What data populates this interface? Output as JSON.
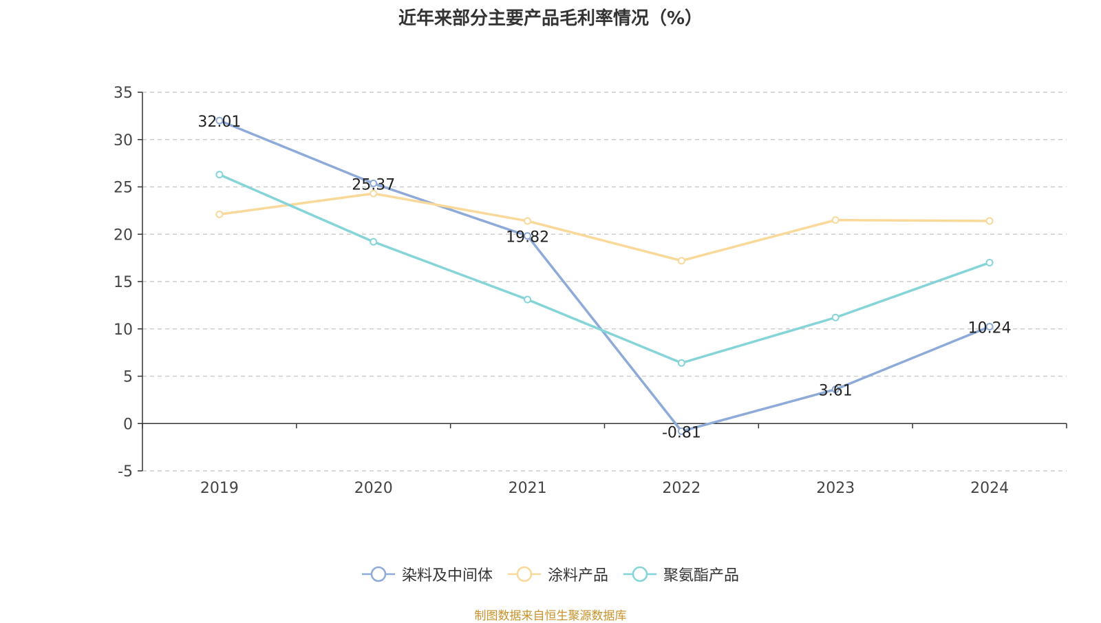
{
  "title": "近年来部分主要产品毛利率情况（%）",
  "source": "制图数据来自恒生聚源数据库",
  "chart_data": {
    "type": "line",
    "title": "近年来部分主要产品毛利率情况（%）",
    "categories": [
      "2019",
      "2020",
      "2021",
      "2022",
      "2023",
      "2024"
    ],
    "ylim": [
      -5,
      35
    ],
    "yticks": [
      -5,
      0,
      5,
      10,
      15,
      20,
      25,
      30,
      35
    ],
    "grid": true,
    "legend_position": "bottom",
    "series": [
      {
        "name": "染料及中间体",
        "color": "#8eaad8",
        "values": [
          32.01,
          25.37,
          19.82,
          -0.81,
          3.61,
          10.24
        ],
        "show_labels": true
      },
      {
        "name": "涂料产品",
        "color": "#f9d99a",
        "values": [
          22.1,
          24.3,
          21.4,
          17.2,
          21.5,
          21.4
        ],
        "show_labels": false
      },
      {
        "name": "聚氨酯产品",
        "color": "#84d4d8",
        "values": [
          26.3,
          19.2,
          13.1,
          6.4,
          11.2,
          17.0
        ],
        "show_labels": false
      }
    ]
  }
}
